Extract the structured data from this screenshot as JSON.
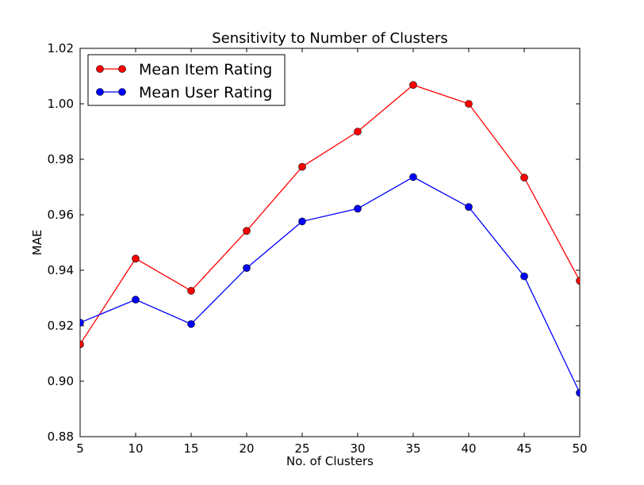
{
  "chart_data": {
    "type": "line",
    "title": "Sensitivity to Number of Clusters",
    "xlabel": "No. of Clusters",
    "ylabel": "MAE",
    "x": [
      5,
      10,
      15,
      20,
      25,
      30,
      35,
      40,
      45,
      50
    ],
    "xlim": [
      5,
      50
    ],
    "ylim": [
      0.88,
      1.02
    ],
    "x_ticks": [
      "5",
      "10",
      "15",
      "20",
      "25",
      "30",
      "35",
      "40",
      "45",
      "50"
    ],
    "y_ticks": [
      "0.88",
      "0.90",
      "0.92",
      "0.94",
      "0.96",
      "0.98",
      "1.00",
      "1.02"
    ],
    "grid": false,
    "legend_position": "top-left",
    "series": [
      {
        "name": "Mean Item Rating",
        "color": "#ff0000",
        "values": [
          0.9133,
          0.9442,
          0.9326,
          0.9542,
          0.9773,
          0.99,
          1.0068,
          1.0,
          0.9734,
          0.9362
        ]
      },
      {
        "name": "Mean User Rating",
        "color": "#0000ff",
        "values": [
          0.9211,
          0.9294,
          0.9206,
          0.9408,
          0.9576,
          0.9622,
          0.9736,
          0.9628,
          0.9378,
          0.8958
        ]
      }
    ]
  }
}
